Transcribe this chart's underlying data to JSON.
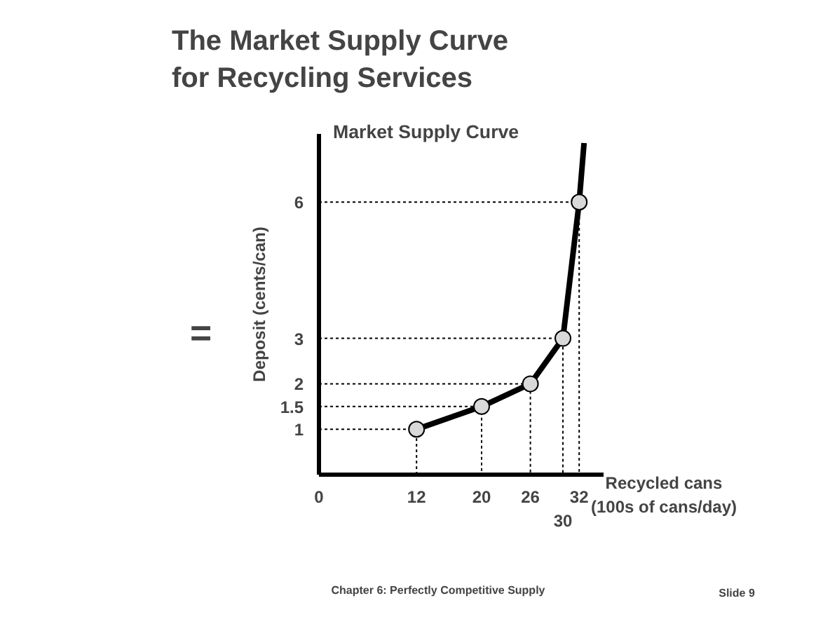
{
  "chart_data": {
    "type": "line",
    "title": "The Market Supply Curve\nfor Recycling Services",
    "subtitle": "Market Supply Curve",
    "xlabel": "Recycled cans\n(100s of cans/day)",
    "ylabel": "Deposit (cents/can)",
    "series": [
      {
        "color": "#000000",
        "x": [
          0,
          12,
          12
        ],
        "values": [
          1,
          1,
          0
        ],
        "line_style": "dashed"
      },
      {
        "color": "#000000",
        "x": [
          0,
          20,
          20
        ],
        "values": [
          1.5,
          1.5,
          0
        ],
        "line_style": "dashed"
      },
      {
        "color": "#000000",
        "x": [
          0,
          26,
          26
        ],
        "values": [
          2,
          2,
          0
        ],
        "line_style": "dashed"
      },
      {
        "color": "#000000",
        "x": [
          0,
          30,
          30
        ],
        "values": [
          3,
          3,
          0
        ],
        "line_style": "dashed"
      },
      {
        "color": "#000000",
        "x": [
          0,
          32,
          32
        ],
        "values": [
          6,
          6,
          0
        ],
        "line_style": "dashed"
      },
      {
        "color": "#000000",
        "x": [
          12,
          20,
          26,
          30,
          32,
          32.6
        ],
        "values": [
          1,
          1.5,
          2,
          3,
          6,
          7.3
        ],
        "line_style": "solid"
      },
      {
        "type": "scatter",
        "color": "#d9d9d9",
        "x": [
          12,
          20,
          26,
          30,
          32
        ],
        "values": [
          1,
          1.5,
          2,
          3,
          6
        ],
        "marker": "circle"
      }
    ],
    "xlim": [
      0,
      35
    ],
    "ylim": [
      0,
      7.5
    ],
    "xticks": [
      0,
      12,
      20,
      26,
      32
    ],
    "yticks": [
      1,
      1.5,
      2,
      3,
      6
    ],
    "annotations": [
      {
        "text": "30",
        "x": 30,
        "y": 0
      },
      "=",
      "Chapter 6: Perfectly Competitive Supply",
      "Slide 9"
    ]
  }
}
